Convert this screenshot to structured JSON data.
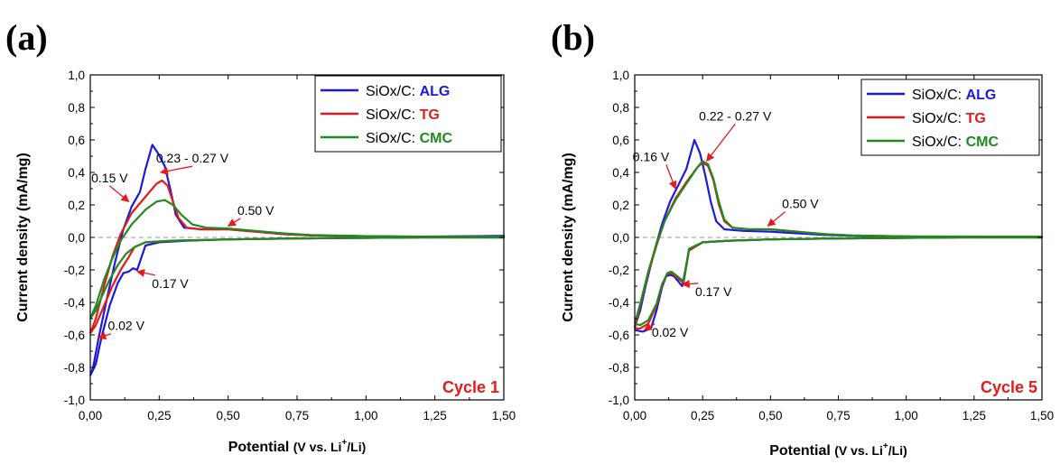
{
  "chart_data": [
    {
      "type": "line",
      "panel_label": "(a)",
      "xlabel": {
        "prefix": "Potential",
        "unit": "(V vs. Li",
        "sup": "+",
        "suffix": "/Li)"
      },
      "ylabel": "Current density (mA/mg)",
      "xlim": [
        0.0,
        1.5
      ],
      "ylim": [
        -1.0,
        1.0
      ],
      "x_ticks": [
        "0,00",
        "0,25",
        "0,50",
        "0,75",
        "1,00",
        "1,25",
        "1,50"
      ],
      "y_ticks": [
        "-1,0",
        "-0,8",
        "-0,6",
        "-0,4",
        "-0,2",
        "0,0",
        "0,2",
        "0,4",
        "0,6",
        "0,8",
        "1,0"
      ],
      "zero_line": true,
      "legend_position": "top-right",
      "cycle_label": "Cycle 1",
      "series": [
        {
          "name_prefix": "SiOx/C: ",
          "name": "ALG",
          "color": "#1a1adc",
          "anodic": [
            [
              0.0,
              -0.85
            ],
            [
              0.01,
              -0.8
            ],
            [
              0.03,
              -0.62
            ],
            [
              0.06,
              -0.38
            ],
            [
              0.09,
              -0.15
            ],
            [
              0.12,
              0.05
            ],
            [
              0.15,
              0.19
            ],
            [
              0.18,
              0.28
            ],
            [
              0.2,
              0.42
            ],
            [
              0.225,
              0.57
            ],
            [
              0.245,
              0.52
            ],
            [
              0.27,
              0.44
            ],
            [
              0.29,
              0.3
            ],
            [
              0.31,
              0.14
            ],
            [
              0.34,
              0.06
            ],
            [
              0.4,
              0.05
            ],
            [
              0.5,
              0.05
            ],
            [
              0.6,
              0.035
            ],
            [
              0.7,
              0.02
            ],
            [
              0.8,
              0.012
            ],
            [
              1.0,
              0.008
            ],
            [
              1.2,
              0.005
            ],
            [
              1.4,
              0.008
            ],
            [
              1.5,
              0.01
            ]
          ],
          "cathodic": [
            [
              1.5,
              0.0
            ],
            [
              1.2,
              0.0
            ],
            [
              1.0,
              -0.003
            ],
            [
              0.75,
              -0.006
            ],
            [
              0.5,
              -0.012
            ],
            [
              0.35,
              -0.02
            ],
            [
              0.25,
              -0.03
            ],
            [
              0.2,
              -0.05
            ],
            [
              0.17,
              -0.2
            ],
            [
              0.155,
              -0.19
            ],
            [
              0.14,
              -0.21
            ],
            [
              0.12,
              -0.22
            ],
            [
              0.1,
              -0.28
            ],
            [
              0.07,
              -0.42
            ],
            [
              0.04,
              -0.62
            ],
            [
              0.02,
              -0.78
            ],
            [
              0.0,
              -0.85
            ]
          ]
        },
        {
          "name_prefix": "SiOx/C: ",
          "name": "TG",
          "color": "#e41a1c",
          "anodic": [
            [
              0.0,
              -0.59
            ],
            [
              0.02,
              -0.5
            ],
            [
              0.05,
              -0.3
            ],
            [
              0.08,
              -0.12
            ],
            [
              0.11,
              0.02
            ],
            [
              0.15,
              0.15
            ],
            [
              0.2,
              0.25
            ],
            [
              0.24,
              0.33
            ],
            [
              0.26,
              0.35
            ],
            [
              0.28,
              0.32
            ],
            [
              0.3,
              0.22
            ],
            [
              0.32,
              0.12
            ],
            [
              0.35,
              0.06
            ],
            [
              0.4,
              0.05
            ],
            [
              0.5,
              0.05
            ],
            [
              0.6,
              0.035
            ],
            [
              0.7,
              0.02
            ],
            [
              0.8,
              0.012
            ],
            [
              1.0,
              0.007
            ],
            [
              1.2,
              0.004
            ],
            [
              1.5,
              0.004
            ]
          ],
          "cathodic": [
            [
              1.5,
              0.0
            ],
            [
              1.2,
              0.0
            ],
            [
              1.0,
              -0.003
            ],
            [
              0.75,
              -0.006
            ],
            [
              0.5,
              -0.012
            ],
            [
              0.3,
              -0.02
            ],
            [
              0.2,
              -0.03
            ],
            [
              0.16,
              -0.06
            ],
            [
              0.14,
              -0.12
            ],
            [
              0.11,
              -0.2
            ],
            [
              0.08,
              -0.3
            ],
            [
              0.05,
              -0.42
            ],
            [
              0.02,
              -0.54
            ],
            [
              0.0,
              -0.59
            ]
          ]
        },
        {
          "name_prefix": "SiOx/C: ",
          "name": "CMC",
          "color": "#1f8a1f",
          "anodic": [
            [
              0.0,
              -0.5
            ],
            [
              0.02,
              -0.42
            ],
            [
              0.05,
              -0.26
            ],
            [
              0.08,
              -0.13
            ],
            [
              0.11,
              -0.02
            ],
            [
              0.15,
              0.08
            ],
            [
              0.2,
              0.17
            ],
            [
              0.24,
              0.22
            ],
            [
              0.27,
              0.23
            ],
            [
              0.3,
              0.2
            ],
            [
              0.33,
              0.14
            ],
            [
              0.37,
              0.08
            ],
            [
              0.42,
              0.06
            ],
            [
              0.5,
              0.055
            ],
            [
              0.6,
              0.04
            ],
            [
              0.7,
              0.025
            ],
            [
              0.8,
              0.015
            ],
            [
              1.0,
              0.008
            ],
            [
              1.2,
              0.004
            ],
            [
              1.5,
              0.004
            ]
          ],
          "cathodic": [
            [
              1.5,
              0.0
            ],
            [
              1.2,
              0.0
            ],
            [
              1.0,
              -0.003
            ],
            [
              0.75,
              -0.006
            ],
            [
              0.5,
              -0.012
            ],
            [
              0.3,
              -0.02
            ],
            [
              0.2,
              -0.03
            ],
            [
              0.16,
              -0.06
            ],
            [
              0.13,
              -0.1
            ],
            [
              0.1,
              -0.17
            ],
            [
              0.07,
              -0.26
            ],
            [
              0.04,
              -0.37
            ],
            [
              0.02,
              -0.45
            ],
            [
              0.0,
              -0.5
            ]
          ]
        }
      ],
      "annotations": [
        {
          "text": "0.23 - 0.27 V",
          "x": 0.37,
          "y": 0.46,
          "ax": 0.255,
          "ay": 0.4
        },
        {
          "text": "0.15 V",
          "x": 0.07,
          "y": 0.34,
          "ax": 0.14,
          "ay": 0.22
        },
        {
          "text": "0.50 V",
          "x": 0.6,
          "y": 0.14,
          "ax": 0.5,
          "ay": 0.07
        },
        {
          "text": "0.17 V",
          "x": 0.29,
          "y": -0.31,
          "ax": 0.17,
          "ay": -0.21
        },
        {
          "text": "0.02 V",
          "x": 0.13,
          "y": -0.57,
          "ax": 0.03,
          "ay": -0.62
        }
      ]
    },
    {
      "type": "line",
      "panel_label": "(b)",
      "xlabel": {
        "prefix": "Potential",
        "unit": "(V vs. Li",
        "sup": "+",
        "suffix": "/Li)"
      },
      "ylabel": "Current density (mA/mg)",
      "xlim": [
        0.0,
        1.5
      ],
      "ylim": [
        -1.0,
        1.0
      ],
      "x_ticks": [
        "0,00",
        "0,25",
        "0,50",
        "0,75",
        "1,00",
        "1,25",
        "1,50"
      ],
      "y_ticks": [
        "-1,0",
        "-0,8",
        "-0,6",
        "-0,4",
        "-0,2",
        "0,0",
        "0,2",
        "0,4",
        "0,6",
        "0,8",
        "1,0"
      ],
      "zero_line": true,
      "legend_position": "top-right",
      "cycle_label": "Cycle 5",
      "series": [
        {
          "name_prefix": "SiOx/C: ",
          "name": "ALG",
          "color": "#1a1adc",
          "anodic": [
            [
              0.0,
              -0.55
            ],
            [
              0.02,
              -0.45
            ],
            [
              0.04,
              -0.3
            ],
            [
              0.07,
              -0.1
            ],
            [
              0.1,
              0.08
            ],
            [
              0.13,
              0.22
            ],
            [
              0.16,
              0.32
            ],
            [
              0.19,
              0.42
            ],
            [
              0.22,
              0.6
            ],
            [
              0.24,
              0.52
            ],
            [
              0.26,
              0.38
            ],
            [
              0.28,
              0.22
            ],
            [
              0.3,
              0.1
            ],
            [
              0.33,
              0.05
            ],
            [
              0.4,
              0.04
            ],
            [
              0.5,
              0.035
            ],
            [
              0.6,
              0.025
            ],
            [
              0.7,
              0.015
            ],
            [
              0.8,
              0.01
            ],
            [
              1.0,
              0.005
            ],
            [
              1.5,
              0.004
            ]
          ],
          "cathodic": [
            [
              1.5,
              0.0
            ],
            [
              1.2,
              0.0
            ],
            [
              1.0,
              -0.003
            ],
            [
              0.75,
              -0.006
            ],
            [
              0.5,
              -0.012
            ],
            [
              0.35,
              -0.02
            ],
            [
              0.25,
              -0.03
            ],
            [
              0.2,
              -0.08
            ],
            [
              0.175,
              -0.3
            ],
            [
              0.16,
              -0.27
            ],
            [
              0.145,
              -0.24
            ],
            [
              0.13,
              -0.23
            ],
            [
              0.115,
              -0.24
            ],
            [
              0.1,
              -0.31
            ],
            [
              0.08,
              -0.45
            ],
            [
              0.06,
              -0.56
            ],
            [
              0.03,
              -0.58
            ],
            [
              0.0,
              -0.57
            ]
          ]
        },
        {
          "name_prefix": "SiOx/C: ",
          "name": "TG",
          "color": "#e41a1c",
          "anodic": [
            [
              0.0,
              -0.56
            ],
            [
              0.02,
              -0.42
            ],
            [
              0.05,
              -0.22
            ],
            [
              0.08,
              -0.05
            ],
            [
              0.11,
              0.1
            ],
            [
              0.15,
              0.24
            ],
            [
              0.19,
              0.34
            ],
            [
              0.23,
              0.43
            ],
            [
              0.25,
              0.46
            ],
            [
              0.27,
              0.44
            ],
            [
              0.29,
              0.35
            ],
            [
              0.31,
              0.2
            ],
            [
              0.33,
              0.1
            ],
            [
              0.36,
              0.06
            ],
            [
              0.42,
              0.05
            ],
            [
              0.5,
              0.05
            ],
            [
              0.6,
              0.035
            ],
            [
              0.7,
              0.02
            ],
            [
              0.8,
              0.012
            ],
            [
              1.0,
              0.006
            ],
            [
              1.5,
              0.004
            ]
          ],
          "cathodic": [
            [
              1.5,
              0.0
            ],
            [
              1.2,
              0.0
            ],
            [
              1.0,
              -0.003
            ],
            [
              0.75,
              -0.006
            ],
            [
              0.5,
              -0.012
            ],
            [
              0.35,
              -0.02
            ],
            [
              0.25,
              -0.03
            ],
            [
              0.2,
              -0.08
            ],
            [
              0.18,
              -0.28
            ],
            [
              0.165,
              -0.26
            ],
            [
              0.15,
              -0.24
            ],
            [
              0.135,
              -0.22
            ],
            [
              0.12,
              -0.22
            ],
            [
              0.1,
              -0.3
            ],
            [
              0.08,
              -0.42
            ],
            [
              0.05,
              -0.53
            ],
            [
              0.02,
              -0.56
            ],
            [
              0.0,
              -0.56
            ]
          ]
        },
        {
          "name_prefix": "SiOx/C: ",
          "name": "CMC",
          "color": "#1f8a1f",
          "anodic": [
            [
              0.0,
              -0.53
            ],
            [
              0.02,
              -0.41
            ],
            [
              0.05,
              -0.21
            ],
            [
              0.08,
              -0.04
            ],
            [
              0.11,
              0.1
            ],
            [
              0.15,
              0.23
            ],
            [
              0.19,
              0.33
            ],
            [
              0.23,
              0.43
            ],
            [
              0.25,
              0.47
            ],
            [
              0.27,
              0.45
            ],
            [
              0.29,
              0.36
            ],
            [
              0.31,
              0.22
            ],
            [
              0.33,
              0.11
            ],
            [
              0.36,
              0.06
            ],
            [
              0.42,
              0.05
            ],
            [
              0.5,
              0.05
            ],
            [
              0.6,
              0.035
            ],
            [
              0.7,
              0.02
            ],
            [
              0.8,
              0.012
            ],
            [
              1.0,
              0.006
            ],
            [
              1.5,
              0.004
            ]
          ],
          "cathodic": [
            [
              1.5,
              0.0
            ],
            [
              1.2,
              0.0
            ],
            [
              1.0,
              -0.003
            ],
            [
              0.75,
              -0.006
            ],
            [
              0.5,
              -0.012
            ],
            [
              0.35,
              -0.02
            ],
            [
              0.25,
              -0.03
            ],
            [
              0.2,
              -0.07
            ],
            [
              0.18,
              -0.27
            ],
            [
              0.165,
              -0.25
            ],
            [
              0.15,
              -0.23
            ],
            [
              0.135,
              -0.21
            ],
            [
              0.12,
              -0.22
            ],
            [
              0.1,
              -0.29
            ],
            [
              0.08,
              -0.41
            ],
            [
              0.05,
              -0.51
            ],
            [
              0.02,
              -0.54
            ],
            [
              0.0,
              -0.53
            ]
          ]
        }
      ],
      "annotations": [
        {
          "text": "0.22 - 0.27 V",
          "x": 0.37,
          "y": 0.72,
          "ax": 0.265,
          "ay": 0.47
        },
        {
          "text": "0.16 V",
          "x": 0.06,
          "y": 0.47,
          "ax": 0.15,
          "ay": 0.3
        },
        {
          "text": "0.50 V",
          "x": 0.61,
          "y": 0.18,
          "ax": 0.49,
          "ay": 0.07
        },
        {
          "text": "0.17 V",
          "x": 0.29,
          "y": -0.36,
          "ax": 0.175,
          "ay": -0.29
        },
        {
          "text": "0.02 V",
          "x": 0.13,
          "y": -0.61,
          "ax": 0.035,
          "ay": -0.57
        }
      ]
    }
  ],
  "colors": {
    "axis": "#000000",
    "zero_line": "#9a9a9a",
    "annotation_arrow": "#e41a1c",
    "cycle_label": "#e41a1c",
    "ALG_label": "#1a1adc",
    "TG_label": "#e41a1c",
    "CMC_label": "#1f8a1f"
  }
}
